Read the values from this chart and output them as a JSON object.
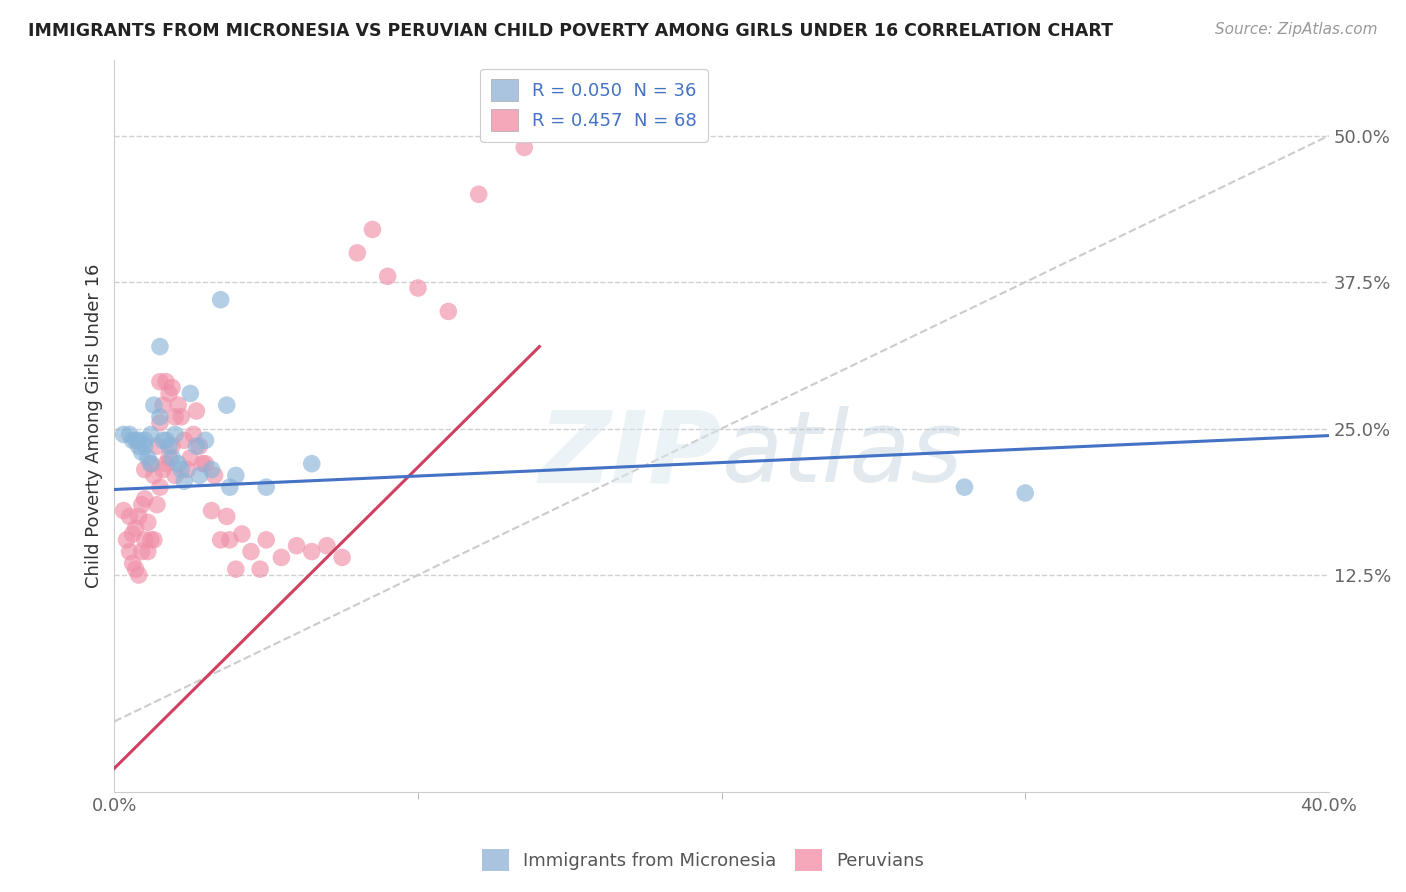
{
  "title": "IMMIGRANTS FROM MICRONESIA VS PERUVIAN CHILD POVERTY AMONG GIRLS UNDER 16 CORRELATION CHART",
  "source": "Source: ZipAtlas.com",
  "ylabel": "Child Poverty Among Girls Under 16",
  "ytick_labels": [
    "12.5%",
    "25.0%",
    "37.5%",
    "50.0%"
  ],
  "ytick_values": [
    0.125,
    0.25,
    0.375,
    0.5
  ],
  "xlim": [
    0.0,
    0.4
  ],
  "ylim": [
    -0.06,
    0.565
  ],
  "xtick_labels": [
    "0.0%",
    "40.0%"
  ],
  "xtick_values": [
    0.0,
    0.4
  ],
  "series1_color": "#8ab4d8",
  "series2_color": "#f090a8",
  "trendline1_color": "#4472c4",
  "trendline2_color": "#d04060",
  "refline_color": "#cccccc",
  "background": "#ffffff",
  "grid_color": "#d0d0d0",
  "blue_points_x": [
    0.003,
    0.005,
    0.006,
    0.007,
    0.008,
    0.008,
    0.009,
    0.01,
    0.01,
    0.011,
    0.012,
    0.012,
    0.013,
    0.015,
    0.015,
    0.016,
    0.017,
    0.018,
    0.019,
    0.02,
    0.021,
    0.022,
    0.023,
    0.025,
    0.027,
    0.028,
    0.03,
    0.032,
    0.035,
    0.037,
    0.038,
    0.04,
    0.05,
    0.065,
    0.28,
    0.3
  ],
  "blue_points_y": [
    0.245,
    0.245,
    0.24,
    0.24,
    0.235,
    0.24,
    0.23,
    0.24,
    0.235,
    0.225,
    0.22,
    0.245,
    0.27,
    0.32,
    0.26,
    0.24,
    0.24,
    0.235,
    0.225,
    0.245,
    0.22,
    0.215,
    0.205,
    0.28,
    0.235,
    0.21,
    0.24,
    0.215,
    0.36,
    0.27,
    0.2,
    0.21,
    0.2,
    0.22,
    0.2,
    0.195
  ],
  "pink_points_x": [
    0.003,
    0.004,
    0.005,
    0.005,
    0.006,
    0.006,
    0.007,
    0.007,
    0.008,
    0.008,
    0.009,
    0.009,
    0.01,
    0.01,
    0.01,
    0.011,
    0.011,
    0.012,
    0.012,
    0.013,
    0.013,
    0.014,
    0.014,
    0.015,
    0.015,
    0.015,
    0.016,
    0.016,
    0.017,
    0.017,
    0.018,
    0.018,
    0.019,
    0.019,
    0.02,
    0.02,
    0.021,
    0.022,
    0.023,
    0.024,
    0.025,
    0.026,
    0.027,
    0.028,
    0.029,
    0.03,
    0.032,
    0.033,
    0.035,
    0.037,
    0.038,
    0.04,
    0.042,
    0.045,
    0.048,
    0.05,
    0.055,
    0.06,
    0.065,
    0.07,
    0.075,
    0.08,
    0.085,
    0.09,
    0.1,
    0.11,
    0.12,
    0.135
  ],
  "pink_points_y": [
    0.18,
    0.155,
    0.145,
    0.175,
    0.135,
    0.16,
    0.13,
    0.165,
    0.125,
    0.175,
    0.145,
    0.185,
    0.155,
    0.19,
    0.215,
    0.145,
    0.17,
    0.155,
    0.22,
    0.155,
    0.21,
    0.185,
    0.235,
    0.2,
    0.255,
    0.29,
    0.215,
    0.27,
    0.22,
    0.29,
    0.225,
    0.28,
    0.235,
    0.285,
    0.21,
    0.26,
    0.27,
    0.26,
    0.24,
    0.215,
    0.225,
    0.245,
    0.265,
    0.235,
    0.22,
    0.22,
    0.18,
    0.21,
    0.155,
    0.175,
    0.155,
    0.13,
    0.16,
    0.145,
    0.13,
    0.155,
    0.14,
    0.15,
    0.145,
    0.15,
    0.14,
    0.4,
    0.42,
    0.38,
    0.37,
    0.35,
    0.45,
    0.49
  ],
  "trendline1_x": [
    0.0,
    0.4
  ],
  "trendline1_y": [
    0.198,
    0.244
  ],
  "trendline2_x": [
    0.0,
    0.14
  ],
  "trendline2_y": [
    -0.04,
    0.32
  ],
  "refline_x": [
    0.0,
    0.4
  ],
  "refline_y": [
    0.0,
    0.5
  ],
  "legend1_label": "R = 0.050  N = 36",
  "legend2_label": "R = 0.457  N = 68",
  "legend1_color": "#aac4e0",
  "legend2_color": "#f4a8ba",
  "bottom_legend1": "Immigrants from Micronesia",
  "bottom_legend2": "Peruvians",
  "label_color": "#4472c4",
  "axis_label_color": "#666666",
  "title_fontsize": 12.5,
  "axis_fontsize": 13,
  "source_fontsize": 11
}
